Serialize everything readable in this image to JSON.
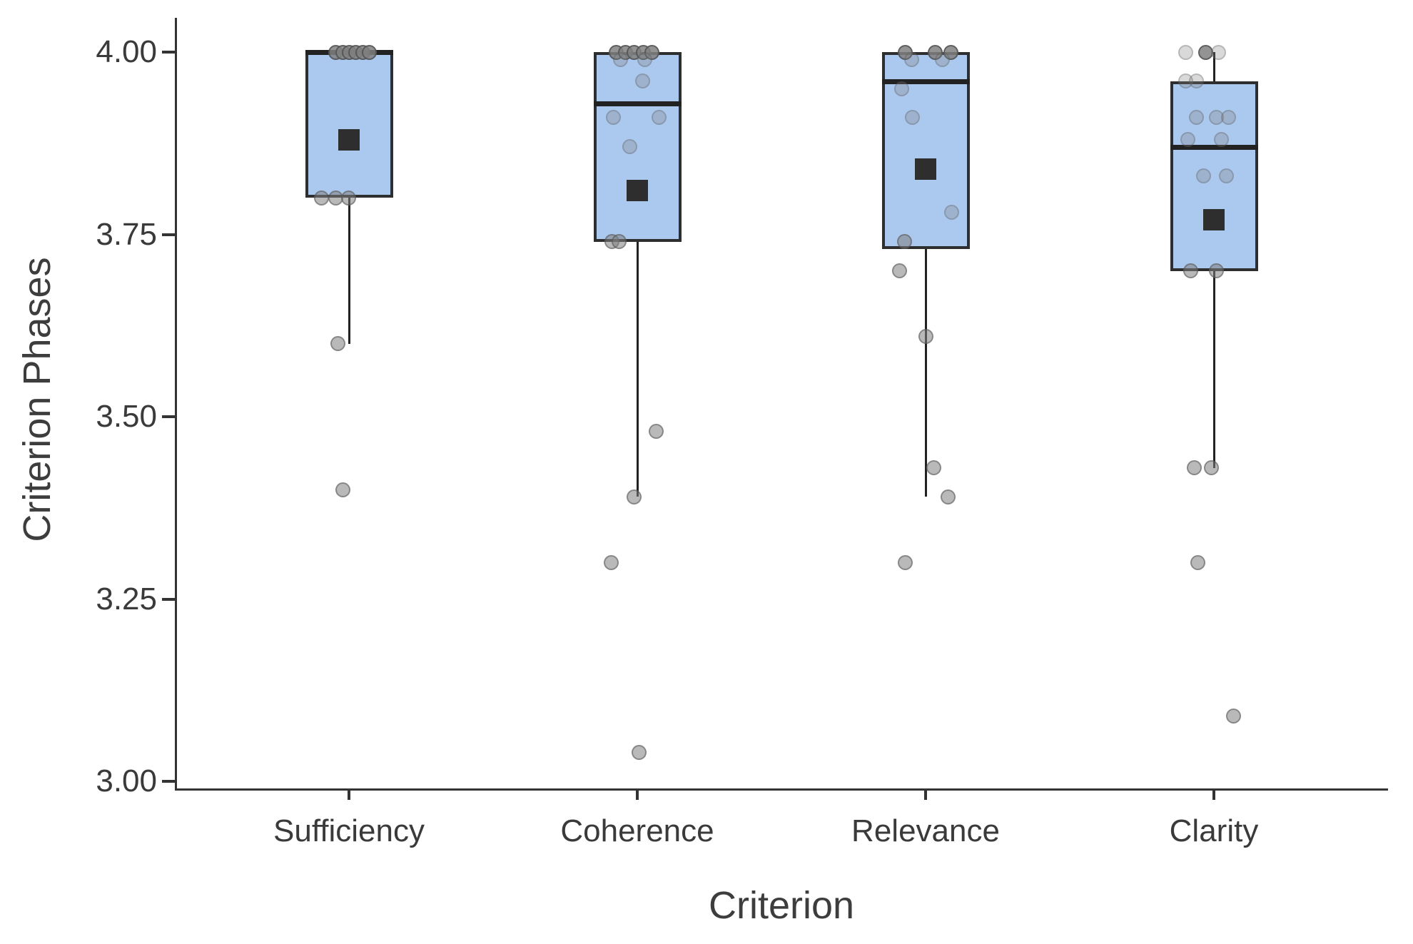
{
  "figure": {
    "background": "#ffffff",
    "box_fill": "#abc8ee",
    "box_border": "#2e2e2e",
    "median_color": "#222222",
    "mean_color": "#2e2e2e",
    "point_color": "128,128,128",
    "point_edge": "70,70,70",
    "axis_color": "#333333",
    "text_color": "#3a3a3a"
  },
  "chart_data": {
    "type": "boxplot",
    "title": "",
    "xlabel": "Criterion",
    "ylabel": "Criterion Phases",
    "ylim": [
      3.0,
      4.05
    ],
    "grid": false,
    "legend": "none",
    "yticks": [
      {
        "value": 4.0,
        "label": "4.00"
      },
      {
        "value": 3.75,
        "label": "3.75"
      },
      {
        "value": 3.5,
        "label": "3.50"
      },
      {
        "value": 3.25,
        "label": "3.25"
      },
      {
        "value": 3.0,
        "label": "3.00"
      }
    ],
    "categories": [
      "Sufficiency",
      "Coherence",
      "Relevance",
      "Clarity"
    ],
    "series": [
      {
        "name": "Sufficiency",
        "q1": 3.8,
        "median": 4.0,
        "q3": 4.0,
        "whisker_low": 3.6,
        "whisker_high": 4.0,
        "mean": 3.88,
        "outliers": [
          3.4
        ],
        "points": [
          {
            "v": 4.0,
            "dx": -19,
            "tone": "dark"
          },
          {
            "v": 4.0,
            "dx": -9,
            "tone": "dark"
          },
          {
            "v": 4.0,
            "dx": 0,
            "tone": "dark"
          },
          {
            "v": 4.0,
            "dx": 9,
            "tone": "dark"
          },
          {
            "v": 4.0,
            "dx": 19,
            "tone": "dark"
          },
          {
            "v": 4.0,
            "dx": 28,
            "tone": "dark"
          },
          {
            "v": 3.8,
            "dx": -39,
            "tone": "mid"
          },
          {
            "v": 3.8,
            "dx": -19,
            "tone": "mid"
          },
          {
            "v": 3.8,
            "dx": -1,
            "tone": "mid"
          },
          {
            "v": 3.6,
            "dx": -16,
            "tone": "mid"
          },
          {
            "v": 3.4,
            "dx": -9,
            "tone": "mid"
          }
        ]
      },
      {
        "name": "Coherence",
        "q1": 3.74,
        "median": 3.93,
        "q3": 4.0,
        "whisker_low": 3.39,
        "whisker_high": 4.0,
        "mean": 3.81,
        "outliers": [
          3.3,
          3.04
        ],
        "points": [
          {
            "v": 4.0,
            "dx": -30,
            "tone": "dark"
          },
          {
            "v": 4.0,
            "dx": -17,
            "tone": "dark"
          },
          {
            "v": 4.0,
            "dx": -5,
            "tone": "dark"
          },
          {
            "v": 4.0,
            "dx": 8,
            "tone": "dark"
          },
          {
            "v": 4.0,
            "dx": 20,
            "tone": "dark"
          },
          {
            "v": 3.99,
            "dx": -24,
            "tone": "light"
          },
          {
            "v": 3.99,
            "dx": 10,
            "tone": "light"
          },
          {
            "v": 3.96,
            "dx": 7,
            "tone": "light"
          },
          {
            "v": 3.91,
            "dx": -34,
            "tone": "light"
          },
          {
            "v": 3.91,
            "dx": 30,
            "tone": "light"
          },
          {
            "v": 3.87,
            "dx": -11,
            "tone": "light"
          },
          {
            "v": 3.74,
            "dx": -36,
            "tone": "mid"
          },
          {
            "v": 3.74,
            "dx": -26,
            "tone": "mid"
          },
          {
            "v": 3.48,
            "dx": 26,
            "tone": "mid"
          },
          {
            "v": 3.39,
            "dx": -5,
            "tone": "mid"
          },
          {
            "v": 3.3,
            "dx": -37,
            "tone": "mid"
          },
          {
            "v": 3.04,
            "dx": 2,
            "tone": "mid"
          }
        ]
      },
      {
        "name": "Relevance",
        "q1": 3.73,
        "median": 3.96,
        "q3": 4.0,
        "whisker_low": 3.39,
        "whisker_high": 4.0,
        "mean": 3.84,
        "outliers": [
          3.3
        ],
        "points": [
          {
            "v": 4.0,
            "dx": -29,
            "tone": "dark"
          },
          {
            "v": 4.0,
            "dx": 13,
            "tone": "dark"
          },
          {
            "v": 4.0,
            "dx": 35,
            "tone": "dark"
          },
          {
            "v": 3.99,
            "dx": -20,
            "tone": "light"
          },
          {
            "v": 3.99,
            "dx": 23,
            "tone": "light"
          },
          {
            "v": 3.95,
            "dx": -34,
            "tone": "light"
          },
          {
            "v": 3.91,
            "dx": -19,
            "tone": "light"
          },
          {
            "v": 3.78,
            "dx": 36,
            "tone": "light"
          },
          {
            "v": 3.74,
            "dx": -30,
            "tone": "mid"
          },
          {
            "v": 3.7,
            "dx": -37,
            "tone": "mid"
          },
          {
            "v": 3.61,
            "dx": 0,
            "tone": "mid"
          },
          {
            "v": 3.43,
            "dx": 11,
            "tone": "mid"
          },
          {
            "v": 3.39,
            "dx": 31,
            "tone": "mid"
          },
          {
            "v": 3.3,
            "dx": -29,
            "tone": "mid"
          }
        ]
      },
      {
        "name": "Clarity",
        "q1": 3.7,
        "median": 3.87,
        "q3": 3.96,
        "whisker_low": 3.43,
        "whisker_high": 4.0,
        "mean": 3.77,
        "outliers": [
          3.3,
          3.09
        ],
        "points": [
          {
            "v": 4.0,
            "dx": -40,
            "tone": "light"
          },
          {
            "v": 4.0,
            "dx": -12,
            "tone": "dark"
          },
          {
            "v": 4.0,
            "dx": 6,
            "tone": "light"
          },
          {
            "v": 3.96,
            "dx": -40,
            "tone": "light"
          },
          {
            "v": 3.96,
            "dx": -25,
            "tone": "light"
          },
          {
            "v": 3.91,
            "dx": -25,
            "tone": "light"
          },
          {
            "v": 3.91,
            "dx": 3,
            "tone": "light"
          },
          {
            "v": 3.91,
            "dx": 20,
            "tone": "light"
          },
          {
            "v": 3.88,
            "dx": -37,
            "tone": "light"
          },
          {
            "v": 3.88,
            "dx": 10,
            "tone": "light"
          },
          {
            "v": 3.83,
            "dx": -15,
            "tone": "light"
          },
          {
            "v": 3.83,
            "dx": 17,
            "tone": "light"
          },
          {
            "v": 3.7,
            "dx": -33,
            "tone": "mid"
          },
          {
            "v": 3.7,
            "dx": 3,
            "tone": "mid"
          },
          {
            "v": 3.43,
            "dx": -28,
            "tone": "mid"
          },
          {
            "v": 3.43,
            "dx": -4,
            "tone": "mid"
          },
          {
            "v": 3.3,
            "dx": -23,
            "tone": "mid"
          },
          {
            "v": 3.09,
            "dx": 27,
            "tone": "mid"
          }
        ]
      }
    ]
  }
}
